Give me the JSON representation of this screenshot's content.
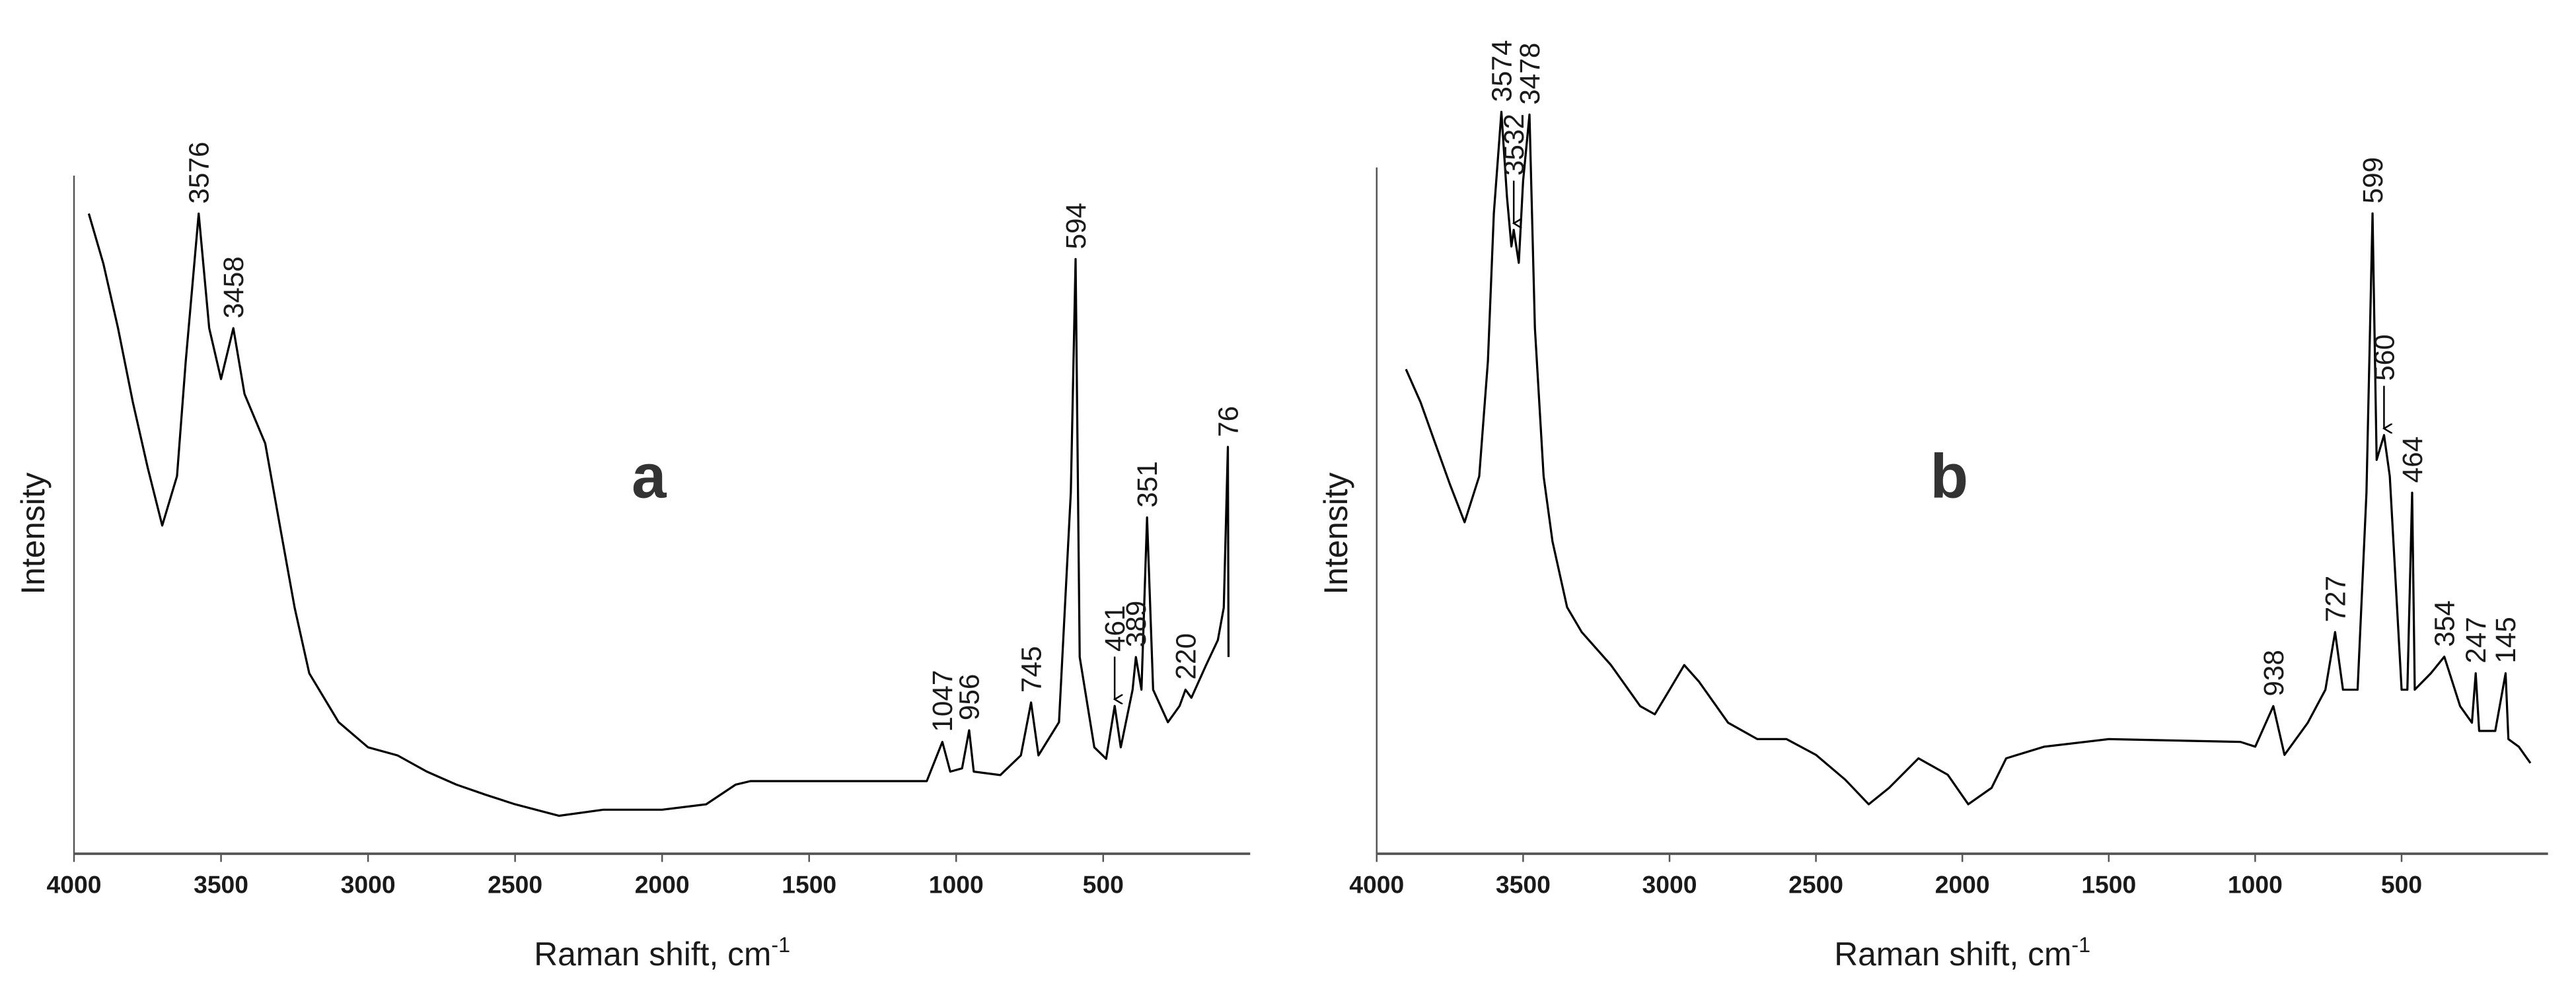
{
  "chart_data": [
    {
      "type": "line",
      "label": "a",
      "ylabel": "Intensity",
      "xlabel": "Raman shift, cm",
      "xlabel_sup": "-1",
      "xlim": [
        4000,
        0
      ],
      "ylim": [
        0,
        100
      ],
      "xticks": [
        4000,
        3500,
        3000,
        2500,
        2000,
        1500,
        1000,
        500
      ],
      "series": [
        {
          "color": "#000000",
          "x": [
            3950,
            3900,
            3850,
            3800,
            3750,
            3700,
            3650,
            3620,
            3576,
            3540,
            3500,
            3458,
            3420,
            3350,
            3300,
            3250,
            3200,
            3100,
            3000,
            2900,
            2800,
            2700,
            2600,
            2500,
            2350,
            2200,
            2000,
            1850,
            1750,
            1700,
            1100,
            1070,
            1047,
            1020,
            980,
            956,
            940,
            850,
            780,
            745,
            720,
            650,
            610,
            594,
            580,
            530,
            490,
            461,
            440,
            400,
            389,
            370,
            351,
            330,
            280,
            240,
            220,
            200,
            150,
            110,
            90,
            76,
            74
          ],
          "values": [
            94.4,
            87,
            77.5,
            66.6,
            57,
            48.4,
            55.7,
            72.6,
            94.4,
            77.5,
            70,
            77.5,
            67.8,
            60.5,
            48.4,
            36.3,
            26.6,
            19.4,
            15.7,
            14.5,
            12.1,
            10.2,
            8.7,
            7.3,
            5.6,
            6.5,
            6.5,
            7.3,
            10.2,
            10.7,
            10.7,
            14,
            16.5,
            12.1,
            12.6,
            18.2,
            12.1,
            11.6,
            14.5,
            22.3,
            14.5,
            19.4,
            53.3,
            87.7,
            29,
            15.7,
            14,
            21.8,
            15.7,
            24.2,
            29,
            24.2,
            49.6,
            24.2,
            19.4,
            21.8,
            24.2,
            23,
            27.8,
            31.5,
            36.3,
            60,
            29
          ]
        }
      ],
      "annotations": [
        {
          "x": 3576,
          "y": 94.4
        },
        {
          "x": 3458,
          "y": 77.5
        },
        {
          "x": 1047,
          "y": 16.5
        },
        {
          "x": 956,
          "y": 18.2
        },
        {
          "x": 745,
          "y": 22.3
        },
        {
          "x": 594,
          "y": 87.7
        },
        {
          "x": 461,
          "y": 21.8,
          "arrow": true
        },
        {
          "x": 389,
          "y": 29
        },
        {
          "x": 351,
          "y": 49.6
        },
        {
          "x": 220,
          "y": 24.2
        },
        {
          "x": 76,
          "y": 60
        }
      ]
    },
    {
      "type": "line",
      "label": "b",
      "ylabel": "Intensity",
      "xlabel": "Raman shift, cm",
      "xlabel_sup": "-1",
      "xlim": [
        4000,
        0
      ],
      "ylim": [
        0,
        100
      ],
      "xticks": [
        4000,
        3500,
        3000,
        2500,
        2000,
        1500,
        1000,
        500
      ],
      "series": [
        {
          "color": "#000000",
          "x": [
            3900,
            3850,
            3800,
            3750,
            3700,
            3650,
            3620,
            3600,
            3574,
            3555,
            3540,
            3532,
            3515,
            3500,
            3478,
            3460,
            3430,
            3400,
            3350,
            3300,
            3200,
            3100,
            3050,
            3000,
            2950,
            2900,
            2800,
            2700,
            2600,
            2500,
            2400,
            2320,
            2250,
            2150,
            2050,
            1980,
            1900,
            1850,
            1720,
            1500,
            1050,
            1000,
            938,
            900,
            820,
            760,
            727,
            700,
            650,
            620,
            599,
            585,
            560,
            540,
            500,
            480,
            464,
            455,
            400,
            354,
            300,
            260,
            247,
            235,
            180,
            145,
            135,
            100,
            60
          ],
          "values": [
            70.6,
            65.8,
            59.8,
            53.8,
            48.3,
            55,
            71.8,
            93.3,
            108.1,
            95.7,
            88.5,
            90.9,
            86.1,
            98,
            107.7,
            76.6,
            55,
            45.5,
            35.9,
            32.3,
            27.5,
            21.5,
            20.3,
            23.9,
            27.5,
            25.1,
            19.1,
            16.7,
            16.7,
            14.4,
            10.8,
            7.2,
            9.6,
            13.9,
            11.5,
            7.2,
            9.6,
            13.9,
            15.6,
            16.7,
            16.3,
            15.6,
            21.5,
            14.4,
            19.1,
            23.9,
            32.3,
            23.9,
            23.9,
            52.6,
            93.3,
            57.4,
            61,
            55,
            23.9,
            23.9,
            52.6,
            23.9,
            26.3,
            28.7,
            21.5,
            19.1,
            26.3,
            17.9,
            17.9,
            26.3,
            16.7,
            15.6,
            13.2
          ]
        }
      ],
      "annotations": [
        {
          "x": 3574,
          "y": 108.1
        },
        {
          "x": 3532,
          "y": 90.9,
          "arrow": true
        },
        {
          "x": 3478,
          "y": 107.7
        },
        {
          "x": 938,
          "y": 21.5
        },
        {
          "x": 727,
          "y": 32.3
        },
        {
          "x": 599,
          "y": 93.3
        },
        {
          "x": 560,
          "y": 61,
          "arrow": true
        },
        {
          "x": 464,
          "y": 52.6
        },
        {
          "x": 354,
          "y": 28.7
        },
        {
          "x": 247,
          "y": 26.3
        },
        {
          "x": 145,
          "y": 26.3
        }
      ]
    }
  ]
}
